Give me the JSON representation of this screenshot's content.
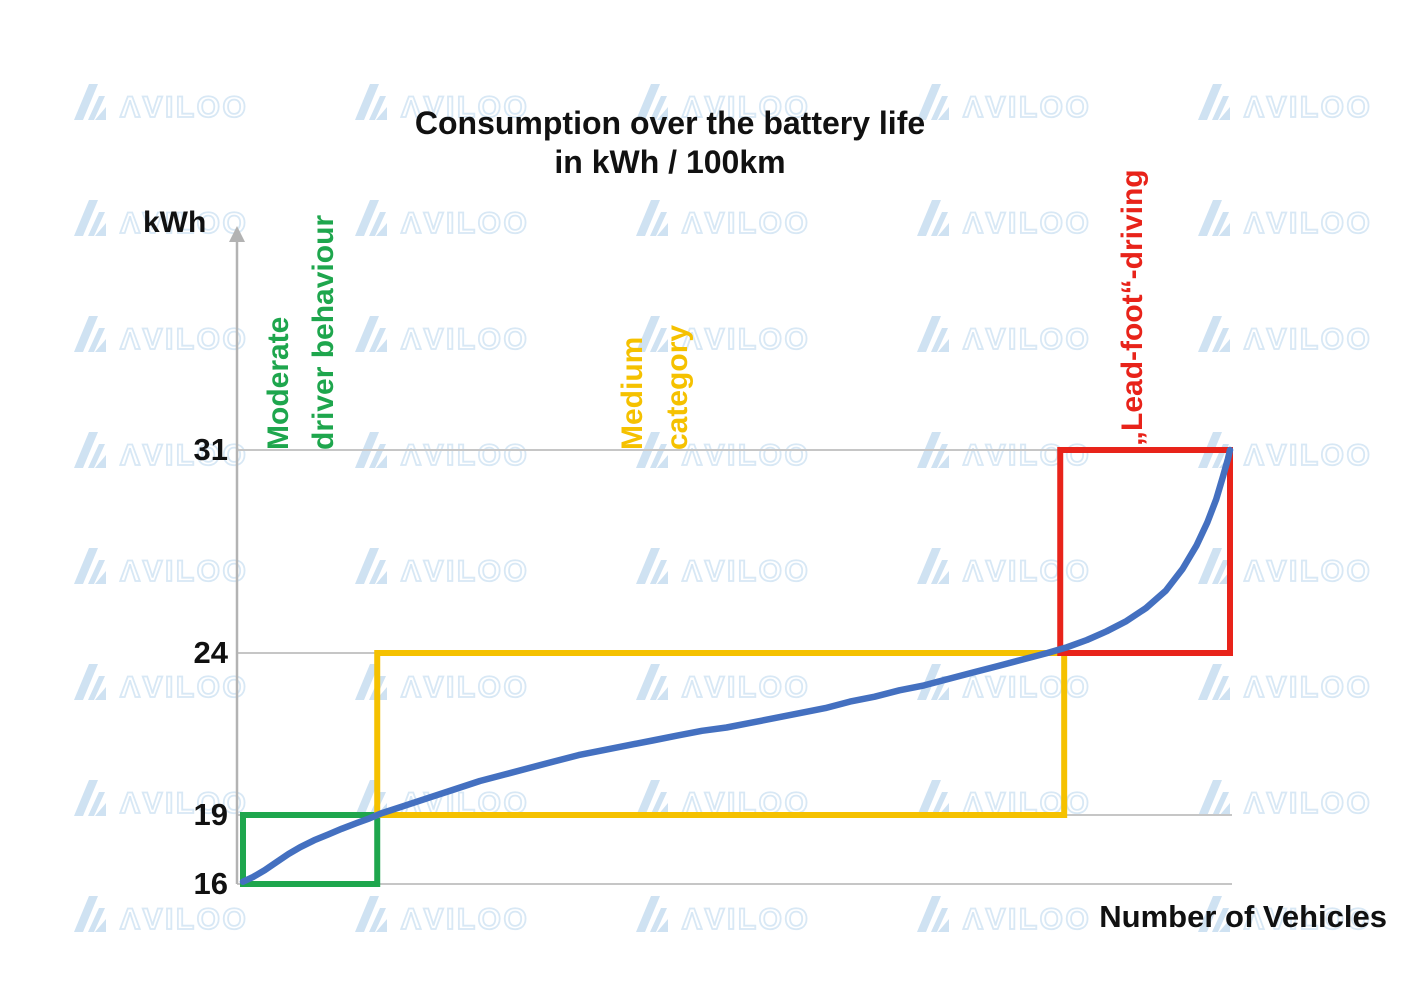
{
  "title": {
    "line1": "Consumption over the battery life",
    "line2": "in kWh / 100km"
  },
  "axes": {
    "y_unit": "kWh",
    "x_label": "Number of Vehicles",
    "y_ticks": [
      "31",
      "24",
      "19",
      "16"
    ]
  },
  "annotations": {
    "moderate": {
      "line1": "Moderate",
      "line2": "driver behaviour",
      "color": "#1ea64d"
    },
    "medium": {
      "line1": "Medium",
      "line2": "category",
      "color": "#f5c100"
    },
    "leadfoot": {
      "line": "„Lead-foot“-driving",
      "color": "#e8231a"
    }
  },
  "watermark": {
    "text": "ΛVILOO",
    "mark_color": "#cfe2f2",
    "text_color": "#d8e8f5"
  },
  "chart_data": {
    "type": "line",
    "title": "Consumption over the battery life in kWh / 100km",
    "xlabel": "Number of Vehicles",
    "ylabel": "kWh",
    "x_note": "vehicles sorted ascending by consumption; x axis has no numeric ticks, x values below are fractions 0-1 of axis length",
    "y_ticks": [
      16,
      19,
      24,
      31
    ],
    "ylim": [
      16,
      31
    ],
    "grid": "horizontal gridlines at y ticks only",
    "legend": "none",
    "series": [
      {
        "name": "Consumption per vehicle (sorted)",
        "color": "#4470c0",
        "points": [
          [
            0.0,
            16.1
          ],
          [
            0.01,
            16.3
          ],
          [
            0.022,
            16.6
          ],
          [
            0.034,
            16.95
          ],
          [
            0.046,
            17.3
          ],
          [
            0.058,
            17.6
          ],
          [
            0.072,
            17.9
          ],
          [
            0.086,
            18.15
          ],
          [
            0.1,
            18.4
          ],
          [
            0.115,
            18.65
          ],
          [
            0.128,
            18.85
          ],
          [
            0.14,
            19.05
          ],
          [
            0.165,
            19.3
          ],
          [
            0.19,
            19.55
          ],
          [
            0.215,
            19.8
          ],
          [
            0.24,
            20.05
          ],
          [
            0.265,
            20.25
          ],
          [
            0.29,
            20.45
          ],
          [
            0.315,
            20.65
          ],
          [
            0.34,
            20.85
          ],
          [
            0.365,
            21.0
          ],
          [
            0.39,
            21.15
          ],
          [
            0.415,
            21.3
          ],
          [
            0.44,
            21.45
          ],
          [
            0.465,
            21.6
          ],
          [
            0.49,
            21.7
          ],
          [
            0.515,
            21.85
          ],
          [
            0.54,
            22.0
          ],
          [
            0.565,
            22.15
          ],
          [
            0.59,
            22.3
          ],
          [
            0.615,
            22.5
          ],
          [
            0.64,
            22.65
          ],
          [
            0.665,
            22.85
          ],
          [
            0.69,
            23.0
          ],
          [
            0.715,
            23.2
          ],
          [
            0.74,
            23.4
          ],
          [
            0.765,
            23.6
          ],
          [
            0.79,
            23.8
          ],
          [
            0.815,
            24.0
          ],
          [
            0.835,
            24.2
          ],
          [
            0.855,
            24.45
          ],
          [
            0.875,
            24.75
          ],
          [
            0.895,
            25.1
          ],
          [
            0.915,
            25.55
          ],
          [
            0.935,
            26.15
          ],
          [
            0.952,
            26.9
          ],
          [
            0.966,
            27.7
          ],
          [
            0.977,
            28.5
          ],
          [
            0.986,
            29.3
          ],
          [
            0.993,
            30.1
          ],
          [
            0.998,
            30.7
          ],
          [
            1.0,
            31.0
          ]
        ]
      }
    ],
    "regions": [
      {
        "id": "moderate",
        "label": "Moderate driver behaviour",
        "color": "#1ea64d",
        "x_from": 0.0,
        "x_to": 0.136,
        "y_from": 16,
        "y_to": 19
      },
      {
        "id": "medium",
        "label": "Medium category",
        "color": "#f5c100",
        "x_from": 0.136,
        "x_to": 0.832,
        "y_from": 19,
        "y_to": 24
      },
      {
        "id": "leadfoot",
        "label": "„Lead-foot“-driving",
        "color": "#e8231a",
        "x_from": 0.828,
        "x_to": 1.0,
        "y_from": 24,
        "y_to": 31
      }
    ]
  }
}
